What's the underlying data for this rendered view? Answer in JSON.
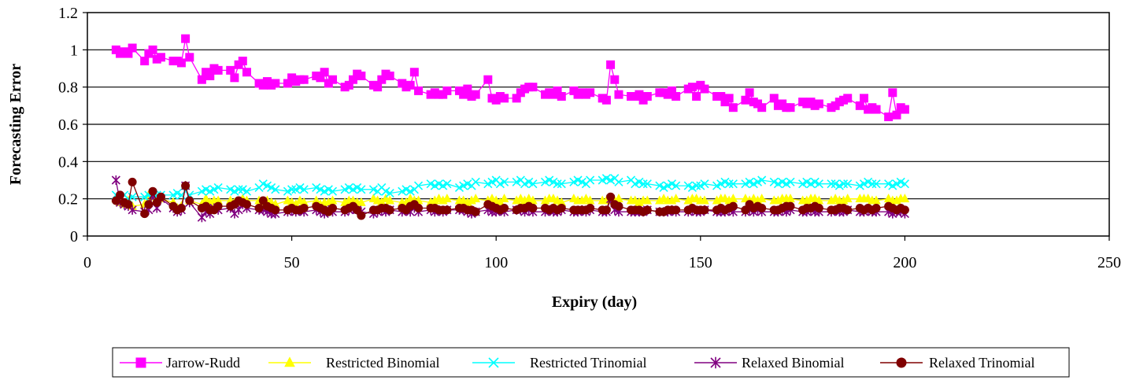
{
  "chart_data": {
    "type": "line",
    "title": "",
    "xlabel": "Expiry (day)",
    "ylabel": "Forecasting Error",
    "xlim": [
      0,
      250
    ],
    "ylim": [
      0,
      1.2
    ],
    "x_ticks": [
      "0",
      "50",
      "100",
      "150",
      "200",
      "250"
    ],
    "y_ticks": [
      "0",
      "0.2",
      "0.4",
      "0.6",
      "0.8",
      "1",
      "1.2"
    ],
    "x_tick_values": [
      0,
      50,
      100,
      150,
      200,
      250
    ],
    "y_tick_values": [
      0,
      0.2,
      0.4,
      0.6,
      0.8,
      1.0,
      1.2
    ],
    "grid": "horizontal",
    "legend_position": "bottom",
    "x": [
      7,
      8,
      9,
      10,
      11,
      14,
      15,
      16,
      17,
      18,
      21,
      22,
      23,
      24,
      25,
      28,
      29,
      30,
      31,
      32,
      35,
      36,
      37,
      38,
      39,
      42,
      43,
      44,
      45,
      46,
      49,
      50,
      51,
      52,
      53,
      56,
      57,
      58,
      59,
      60,
      63,
      64,
      65,
      66,
      67,
      70,
      71,
      72,
      73,
      74,
      77,
      78,
      79,
      80,
      81,
      84,
      85,
      86,
      87,
      88,
      91,
      92,
      93,
      94,
      95,
      98,
      99,
      100,
      101,
      102,
      105,
      106,
      107,
      108,
      109,
      112,
      113,
      114,
      115,
      116,
      119,
      120,
      121,
      122,
      123,
      126,
      127,
      128,
      129,
      130,
      133,
      134,
      135,
      136,
      137,
      140,
      141,
      142,
      143,
      144,
      147,
      148,
      149,
      150,
      151,
      154,
      155,
      156,
      157,
      158,
      161,
      162,
      163,
      164,
      165,
      168,
      169,
      170,
      171,
      172,
      175,
      176,
      177,
      178,
      179,
      182,
      183,
      184,
      185,
      186,
      189,
      190,
      191,
      192,
      193,
      196,
      197,
      198,
      199,
      200
    ],
    "series": [
      {
        "name": "Jarrow-Rudd",
        "color": "#ff00ff",
        "marker": "square",
        "values": [
          1.0,
          0.98,
          0.99,
          0.98,
          1.01,
          0.94,
          0.98,
          1.0,
          0.95,
          0.96,
          0.94,
          0.94,
          0.93,
          1.06,
          0.96,
          0.84,
          0.88,
          0.86,
          0.9,
          0.89,
          0.89,
          0.85,
          0.92,
          0.94,
          0.88,
          0.82,
          0.81,
          0.83,
          0.81,
          0.82,
          0.82,
          0.85,
          0.83,
          0.84,
          0.84,
          0.86,
          0.85,
          0.88,
          0.82,
          0.84,
          0.8,
          0.81,
          0.84,
          0.87,
          0.86,
          0.81,
          0.8,
          0.84,
          0.87,
          0.86,
          0.82,
          0.8,
          0.81,
          0.88,
          0.78,
          0.76,
          0.77,
          0.76,
          0.76,
          0.78,
          0.78,
          0.76,
          0.79,
          0.75,
          0.76,
          0.84,
          0.74,
          0.73,
          0.75,
          0.74,
          0.74,
          0.77,
          0.79,
          0.8,
          0.8,
          0.76,
          0.77,
          0.76,
          0.78,
          0.75,
          0.78,
          0.76,
          0.77,
          0.76,
          0.77,
          0.74,
          0.73,
          0.92,
          0.84,
          0.76,
          0.75,
          0.75,
          0.76,
          0.73,
          0.75,
          0.77,
          0.77,
          0.76,
          0.78,
          0.75,
          0.79,
          0.8,
          0.75,
          0.81,
          0.79,
          0.75,
          0.75,
          0.72,
          0.74,
          0.69,
          0.73,
          0.77,
          0.72,
          0.71,
          0.69,
          0.74,
          0.7,
          0.71,
          0.69,
          0.69,
          0.72,
          0.71,
          0.72,
          0.7,
          0.71,
          0.69,
          0.7,
          0.72,
          0.73,
          0.74,
          0.7,
          0.74,
          0.68,
          0.69,
          0.68,
          0.64,
          0.77,
          0.65,
          0.69,
          0.68
        ]
      },
      {
        "name": "Restricted Binomial",
        "color": "#ffff00",
        "marker": "triangle",
        "values": [
          0.2,
          0.18,
          0.17,
          0.19,
          0.16,
          0.17,
          0.22,
          0.21,
          0.2,
          0.2,
          0.18,
          0.15,
          0.16,
          0.27,
          0.19,
          0.17,
          0.2,
          0.18,
          0.19,
          0.19,
          0.19,
          0.18,
          0.18,
          0.2,
          0.19,
          0.19,
          0.17,
          0.19,
          0.18,
          0.17,
          0.19,
          0.18,
          0.17,
          0.19,
          0.18,
          0.19,
          0.17,
          0.18,
          0.18,
          0.19,
          0.18,
          0.19,
          0.19,
          0.18,
          0.18,
          0.2,
          0.19,
          0.18,
          0.2,
          0.19,
          0.18,
          0.18,
          0.2,
          0.19,
          0.19,
          0.18,
          0.19,
          0.2,
          0.19,
          0.2,
          0.19,
          0.19,
          0.18,
          0.19,
          0.2,
          0.19,
          0.2,
          0.19,
          0.18,
          0.2,
          0.19,
          0.2,
          0.19,
          0.2,
          0.19,
          0.19,
          0.2,
          0.2,
          0.19,
          0.18,
          0.2,
          0.19,
          0.19,
          0.2,
          0.19,
          0.19,
          0.19,
          0.2,
          0.19,
          0.2,
          0.19,
          0.19,
          0.18,
          0.19,
          0.19,
          0.19,
          0.2,
          0.19,
          0.19,
          0.2,
          0.19,
          0.2,
          0.2,
          0.19,
          0.19,
          0.19,
          0.2,
          0.2,
          0.19,
          0.2,
          0.2,
          0.19,
          0.2,
          0.19,
          0.2,
          0.19,
          0.19,
          0.2,
          0.2,
          0.2,
          0.19,
          0.19,
          0.2,
          0.2,
          0.19,
          0.19,
          0.2,
          0.19,
          0.19,
          0.2,
          0.2,
          0.2,
          0.2,
          0.19,
          0.19,
          0.2,
          0.19,
          0.19,
          0.2,
          0.2
        ]
      },
      {
        "name": "Restricted Trinomial",
        "color": "#00ffff",
        "marker": "x",
        "values": [
          0.22,
          0.21,
          0.22,
          0.2,
          0.21,
          0.21,
          0.22,
          0.23,
          0.22,
          0.22,
          0.22,
          0.23,
          0.22,
          0.24,
          0.22,
          0.24,
          0.25,
          0.24,
          0.25,
          0.26,
          0.25,
          0.24,
          0.25,
          0.25,
          0.24,
          0.26,
          0.28,
          0.27,
          0.26,
          0.25,
          0.24,
          0.25,
          0.25,
          0.26,
          0.25,
          0.26,
          0.25,
          0.24,
          0.25,
          0.24,
          0.25,
          0.26,
          0.25,
          0.26,
          0.25,
          0.25,
          0.24,
          0.26,
          0.24,
          0.23,
          0.24,
          0.25,
          0.24,
          0.25,
          0.27,
          0.28,
          0.27,
          0.28,
          0.27,
          0.28,
          0.26,
          0.27,
          0.28,
          0.27,
          0.29,
          0.28,
          0.29,
          0.3,
          0.28,
          0.29,
          0.29,
          0.3,
          0.28,
          0.29,
          0.28,
          0.29,
          0.3,
          0.29,
          0.28,
          0.28,
          0.29,
          0.3,
          0.29,
          0.28,
          0.3,
          0.3,
          0.31,
          0.3,
          0.31,
          0.29,
          0.3,
          0.28,
          0.29,
          0.28,
          0.28,
          0.27,
          0.26,
          0.27,
          0.28,
          0.27,
          0.27,
          0.26,
          0.27,
          0.27,
          0.28,
          0.27,
          0.28,
          0.29,
          0.28,
          0.28,
          0.28,
          0.29,
          0.28,
          0.29,
          0.3,
          0.29,
          0.28,
          0.29,
          0.28,
          0.29,
          0.28,
          0.29,
          0.28,
          0.29,
          0.28,
          0.28,
          0.28,
          0.27,
          0.28,
          0.28,
          0.27,
          0.28,
          0.29,
          0.28,
          0.28,
          0.28,
          0.27,
          0.28,
          0.29,
          0.28
        ]
      },
      {
        "name": "Relaxed Binomial",
        "color": "#800080",
        "marker": "asterisk",
        "values": [
          0.3,
          0.18,
          0.17,
          0.16,
          0.14,
          0.13,
          0.14,
          0.22,
          0.15,
          0.2,
          0.15,
          0.13,
          0.14,
          0.27,
          0.18,
          0.1,
          0.13,
          0.12,
          0.15,
          0.14,
          0.15,
          0.12,
          0.14,
          0.17,
          0.15,
          0.14,
          0.14,
          0.13,
          0.12,
          0.12,
          0.13,
          0.14,
          0.13,
          0.14,
          0.13,
          0.14,
          0.13,
          0.12,
          0.14,
          0.13,
          0.13,
          0.14,
          0.15,
          0.14,
          0.13,
          0.12,
          0.13,
          0.14,
          0.13,
          0.14,
          0.13,
          0.14,
          0.13,
          0.15,
          0.13,
          0.14,
          0.13,
          0.14,
          0.13,
          0.14,
          0.14,
          0.14,
          0.13,
          0.12,
          0.13,
          0.14,
          0.13,
          0.13,
          0.14,
          0.13,
          0.14,
          0.14,
          0.13,
          0.14,
          0.13,
          0.13,
          0.14,
          0.13,
          0.13,
          0.14,
          0.13,
          0.13,
          0.14,
          0.13,
          0.14,
          0.13,
          0.13,
          0.2,
          0.14,
          0.13,
          0.13,
          0.13,
          0.13,
          0.13,
          0.14,
          0.13,
          0.13,
          0.13,
          0.14,
          0.13,
          0.13,
          0.14,
          0.13,
          0.13,
          0.14,
          0.13,
          0.13,
          0.13,
          0.14,
          0.13,
          0.13,
          0.14,
          0.13,
          0.14,
          0.13,
          0.13,
          0.13,
          0.14,
          0.13,
          0.14,
          0.13,
          0.13,
          0.14,
          0.13,
          0.13,
          0.13,
          0.14,
          0.13,
          0.13,
          0.14,
          0.13,
          0.13,
          0.14,
          0.13,
          0.13,
          0.13,
          0.12,
          0.13,
          0.13,
          0.12
        ]
      },
      {
        "name": "Relaxed Trinomial",
        "color": "#800000",
        "marker": "circle",
        "values": [
          0.19,
          0.22,
          0.18,
          0.17,
          0.29,
          0.12,
          0.17,
          0.24,
          0.18,
          0.21,
          0.16,
          0.14,
          0.15,
          0.27,
          0.19,
          0.15,
          0.16,
          0.14,
          0.14,
          0.16,
          0.16,
          0.17,
          0.19,
          0.18,
          0.17,
          0.15,
          0.19,
          0.16,
          0.15,
          0.14,
          0.14,
          0.15,
          0.14,
          0.14,
          0.15,
          0.16,
          0.15,
          0.14,
          0.13,
          0.15,
          0.14,
          0.15,
          0.16,
          0.14,
          0.11,
          0.14,
          0.14,
          0.15,
          0.15,
          0.14,
          0.15,
          0.14,
          0.16,
          0.17,
          0.15,
          0.15,
          0.15,
          0.14,
          0.14,
          0.14,
          0.15,
          0.15,
          0.14,
          0.14,
          0.13,
          0.17,
          0.16,
          0.15,
          0.14,
          0.15,
          0.14,
          0.15,
          0.15,
          0.16,
          0.15,
          0.15,
          0.14,
          0.15,
          0.14,
          0.15,
          0.14,
          0.14,
          0.14,
          0.14,
          0.15,
          0.14,
          0.14,
          0.21,
          0.17,
          0.16,
          0.14,
          0.14,
          0.14,
          0.13,
          0.14,
          0.13,
          0.13,
          0.14,
          0.14,
          0.14,
          0.14,
          0.15,
          0.14,
          0.14,
          0.14,
          0.14,
          0.15,
          0.14,
          0.15,
          0.16,
          0.14,
          0.17,
          0.15,
          0.16,
          0.15,
          0.14,
          0.14,
          0.15,
          0.16,
          0.16,
          0.14,
          0.15,
          0.15,
          0.16,
          0.15,
          0.14,
          0.14,
          0.15,
          0.15,
          0.14,
          0.15,
          0.14,
          0.15,
          0.14,
          0.15,
          0.16,
          0.15,
          0.14,
          0.15,
          0.14
        ]
      }
    ]
  }
}
